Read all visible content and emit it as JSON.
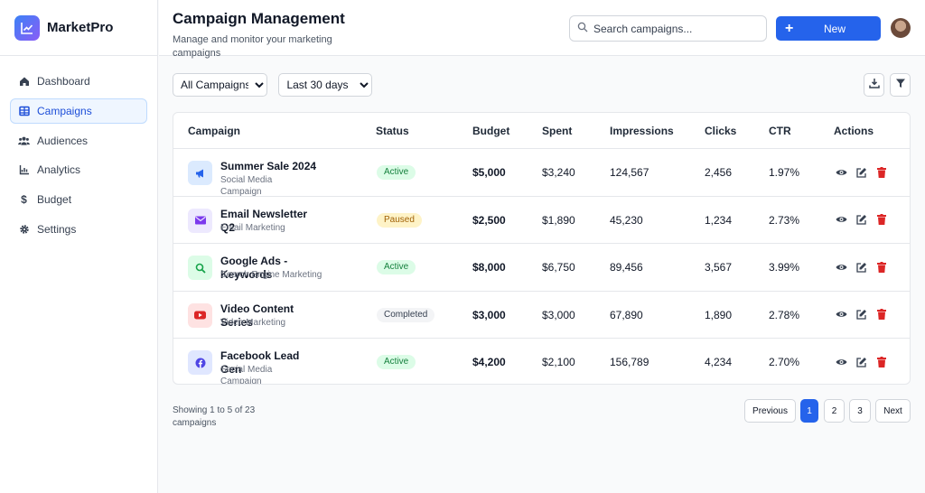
{
  "brand": {
    "name": "MarketPro"
  },
  "sidebar": {
    "items": [
      {
        "label": "Dashboard",
        "icon": "home-icon",
        "active": false
      },
      {
        "label": "Campaigns",
        "icon": "table-icon",
        "active": true
      },
      {
        "label": "Audiences",
        "icon": "users-icon",
        "active": false
      },
      {
        "label": "Analytics",
        "icon": "chart-icon",
        "active": false
      },
      {
        "label": "Budget",
        "icon": "dollar-icon",
        "active": false
      },
      {
        "label": "Settings",
        "icon": "gear-icon",
        "active": false
      }
    ]
  },
  "header": {
    "title": "Campaign Management",
    "subtitle": "Manage and monitor your marketing campaigns",
    "search_placeholder": "Search campaigns...",
    "new_label": "New"
  },
  "filters": {
    "campaign_filter": "All Campaigns",
    "date_filter": "Last 30 days"
  },
  "table": {
    "headers": [
      "Campaign",
      "Status",
      "Budget",
      "Spent",
      "Impressions",
      "Clicks",
      "CTR",
      "Actions"
    ],
    "rows": [
      {
        "name": "Summer Sale 2024",
        "type": "Social Media Campaign",
        "icon": "megaphone-icon",
        "status": "Active",
        "budget": "$5,000",
        "spent": "$3,240",
        "impressions": "124,567",
        "clicks": "2,456",
        "ctr": "1.97%"
      },
      {
        "name": "Email Newsletter Q2",
        "type": "Email Marketing",
        "icon": "envelope-icon",
        "status": "Paused",
        "budget": "$2,500",
        "spent": "$1,890",
        "impressions": "45,230",
        "clicks": "1,234",
        "ctr": "2.73%"
      },
      {
        "name": "Google Ads - Keywords",
        "type": "Search Engine Marketing",
        "icon": "search-icon",
        "status": "Active",
        "budget": "$8,000",
        "spent": "$6,750",
        "impressions": "89,456",
        "clicks": "3,567",
        "ctr": "3.99%"
      },
      {
        "name": "Video Content Series",
        "type": "Video Marketing",
        "icon": "youtube-icon",
        "status": "Completed",
        "budget": "$3,000",
        "spent": "$3,000",
        "impressions": "67,890",
        "clicks": "1,890",
        "ctr": "2.78%"
      },
      {
        "name": "Facebook Lead Gen",
        "type": "Social Media Campaign",
        "icon": "facebook-icon",
        "status": "Active",
        "budget": "$4,200",
        "spent": "$2,100",
        "impressions": "156,789",
        "clicks": "4,234",
        "ctr": "2.70%"
      }
    ]
  },
  "pagination": {
    "showing": "Showing 1 to 5 of 23 campaigns",
    "previous": "Previous",
    "pages": [
      "1",
      "2",
      "3"
    ],
    "current": "1",
    "next": "Next"
  },
  "colors": {
    "accent": "#2563eb",
    "active_bg": "#dcfce7",
    "active_fg": "#15803d",
    "paused_bg": "#fef3c7",
    "paused_fg": "#a16207",
    "completed_bg": "#f3f4f6",
    "completed_fg": "#374151",
    "delete": "#dc2626"
  }
}
